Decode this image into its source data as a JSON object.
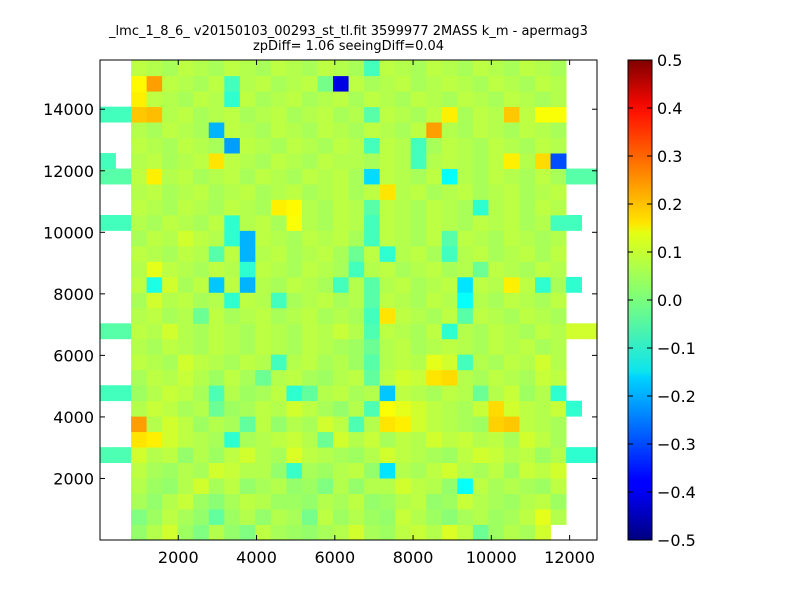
{
  "chart_data": {
    "type": "heatmap",
    "title_line1": "_lmc_1_8_6_ v20150103_00293_st_tl.fit 3599977 2MASS k_m - apermag3",
    "title_line2": "zpDiff= 1.06 seeingDiff=0.04",
    "xlabel": "",
    "ylabel": "",
    "xlim": [
      0,
      12700
    ],
    "ylim": [
      0,
      15600
    ],
    "x_ticks": [
      "2000",
      "4000",
      "6000",
      "8000",
      "10000",
      "12000"
    ],
    "y_ticks": [
      "2000",
      "4000",
      "6000",
      "8000",
      "10000",
      "12000",
      "14000"
    ],
    "colorbar": {
      "colormap": "jet",
      "vmin": -0.5,
      "vmax": 0.5,
      "ticks": [
        "−0.5",
        "−0.4",
        "−0.3",
        "−0.2",
        "−0.1",
        "0.0",
        "0.1",
        "0.2",
        "0.3",
        "0.4",
        "0.5"
      ]
    },
    "grid": false,
    "grid_size": {
      "cols": 32,
      "rows": 31
    },
    "x_start": 0,
    "x_step": 397,
    "y_start": 0,
    "y_step": 503,
    "values": [
      [
        null,
        null,
        0.02,
        0.05,
        0.08,
        0.03,
        0.0,
        0.05,
        0.02,
        0.0,
        0.06,
        0.04,
        0.03,
        0.02,
        0.04,
        0.05,
        0.08,
        0.04,
        0.03,
        0.06,
        0.07,
        0.05,
        0.09,
        0.06,
        -0.02,
        0.03,
        0.05,
        0.04,
        0.08,
        null,
        null,
        null
      ],
      [
        null,
        null,
        0.0,
        0.03,
        0.06,
        0.04,
        0.02,
        -0.03,
        0.03,
        0.05,
        0.02,
        0.05,
        0.04,
        -0.01,
        0.06,
        0.03,
        0.05,
        0.03,
        0.02,
        0.07,
        0.05,
        0.03,
        0.01,
        0.04,
        0.05,
        0.03,
        0.04,
        0.06,
        0.1,
        0.05,
        null,
        null
      ],
      [
        null,
        null,
        0.04,
        0.02,
        0.05,
        0.07,
        0.03,
        0.01,
        0.04,
        0.06,
        0.05,
        0.03,
        0.03,
        0.02,
        0.05,
        0.04,
        0.06,
        0.02,
        0.03,
        0.05,
        0.06,
        0.02,
        0.03,
        0.07,
        0.05,
        0.04,
        0.03,
        0.05,
        0.06,
        0.03,
        null,
        null
      ],
      [
        null,
        null,
        0.05,
        0.03,
        0.02,
        0.05,
        0.08,
        0.04,
        0.06,
        0.02,
        0.04,
        0.05,
        0.02,
        0.03,
        0.0,
        0.05,
        0.02,
        0.05,
        0.05,
        0.08,
        0.06,
        0.05,
        0.02,
        -0.12,
        0.06,
        0.04,
        0.05,
        0.04,
        0.03,
        0.06,
        null,
        null
      ],
      [
        null,
        null,
        0.06,
        0.04,
        0.03,
        0.05,
        0.04,
        0.08,
        0.07,
        0.05,
        0.05,
        0.02,
        -0.07,
        0.04,
        0.03,
        0.05,
        0.06,
        0.02,
        -0.15,
        0.05,
        0.04,
        0.06,
        0.08,
        0.05,
        0.04,
        0.06,
        0.03,
        0.07,
        0.06,
        0.08,
        null,
        null
      ],
      [
        -0.05,
        -0.05,
        0.08,
        0.05,
        0.06,
        0.02,
        0.05,
        0.03,
        0.06,
        0.08,
        0.05,
        0.04,
        0.09,
        0.06,
        0.05,
        0.04,
        0.03,
        0.05,
        0.08,
        0.06,
        0.05,
        0.04,
        0.03,
        0.06,
        0.08,
        0.07,
        0.05,
        0.06,
        0.03,
        0.05,
        -0.08,
        -0.08
      ],
      [
        null,
        null,
        0.15,
        0.14,
        0.08,
        0.06,
        0.05,
        0.04,
        -0.08,
        0.04,
        0.05,
        0.06,
        0.07,
        0.05,
        -0.02,
        0.08,
        0.05,
        0.07,
        0.04,
        0.06,
        0.05,
        0.08,
        0.06,
        0.07,
        0.05,
        0.06,
        0.04,
        0.08,
        0.06,
        0.04,
        null,
        null
      ],
      [
        null,
        null,
        0.22,
        0.05,
        0.08,
        0.06,
        0.03,
        0.05,
        0.04,
        -0.03,
        0.06,
        0.02,
        0.05,
        0.04,
        0.08,
        0.06,
        -0.05,
        0.05,
        0.15,
        0.14,
        0.08,
        0.06,
        0.05,
        0.04,
        0.03,
        0.17,
        0.18,
        0.06,
        0.05,
        0.04,
        null,
        null
      ],
      [
        null,
        null,
        0.05,
        0.07,
        0.06,
        0.04,
        0.05,
        -0.02,
        0.03,
        0.04,
        0.06,
        0.05,
        0.08,
        0.06,
        0.04,
        0.02,
        0.05,
        -0.05,
        0.12,
        0.1,
        0.08,
        0.06,
        0.05,
        0.04,
        0.07,
        0.16,
        0.08,
        0.06,
        0.05,
        0.07,
        -0.08,
        null
      ],
      [
        -0.06,
        -0.06,
        0.03,
        0.05,
        0.07,
        0.06,
        0.04,
        -0.05,
        0.05,
        0.03,
        0.04,
        0.06,
        -0.08,
        -0.03,
        0.05,
        0.06,
        0.04,
        0.05,
        -0.18,
        0.06,
        0.05,
        0.04,
        0.06,
        0.05,
        -0.02,
        0.05,
        0.07,
        0.03,
        0.05,
        -0.08,
        null,
        null
      ],
      [
        null,
        null,
        0.04,
        0.06,
        0.05,
        0.07,
        0.05,
        0.03,
        0.06,
        0.04,
        -0.02,
        0.05,
        0.06,
        0.04,
        0.03,
        0.05,
        0.06,
        -0.03,
        0.06,
        0.08,
        0.07,
        0.15,
        0.16,
        0.05,
        0.04,
        0.06,
        0.05,
        0.04,
        0.07,
        0.06,
        null,
        null
      ],
      [
        null,
        null,
        0.06,
        0.05,
        0.04,
        0.08,
        0.06,
        0.05,
        0.04,
        0.06,
        0.05,
        -0.06,
        0.05,
        0.06,
        0.04,
        0.05,
        0.03,
        -0.04,
        0.05,
        0.06,
        0.05,
        0.1,
        0.08,
        -0.06,
        0.05,
        0.04,
        0.06,
        0.05,
        0.08,
        0.05,
        null,
        null
      ],
      [
        null,
        null,
        0.05,
        0.04,
        0.06,
        0.05,
        0.04,
        0.06,
        0.05,
        0.04,
        0.06,
        0.05,
        0.04,
        0.06,
        0.05,
        0.04,
        0.03,
        -0.02,
        0.05,
        0.06,
        0.04,
        0.05,
        0.06,
        0.05,
        0.04,
        0.06,
        0.05,
        0.06,
        0.04,
        0.05,
        null,
        null
      ],
      [
        -0.04,
        -0.04,
        0.06,
        0.05,
        0.08,
        0.05,
        0.04,
        0.06,
        0.05,
        0.04,
        0.06,
        0.05,
        0.04,
        0.06,
        0.05,
        0.07,
        0.05,
        -0.05,
        0.06,
        0.05,
        0.04,
        0.06,
        -0.08,
        0.05,
        0.04,
        0.06,
        0.05,
        0.04,
        0.06,
        0.05,
        0.08,
        0.08
      ],
      [
        null,
        null,
        0.05,
        0.06,
        0.04,
        0.05,
        -0.02,
        0.06,
        0.04,
        0.05,
        0.06,
        0.04,
        0.05,
        0.06,
        0.04,
        0.05,
        0.04,
        -0.06,
        0.15,
        0.06,
        0.05,
        0.04,
        0.06,
        -0.04,
        0.06,
        0.05,
        0.04,
        0.06,
        0.05,
        0.04,
        null,
        null
      ],
      [
        null,
        null,
        0.04,
        0.08,
        0.05,
        0.06,
        0.04,
        0.05,
        -0.08,
        0.06,
        0.05,
        -0.06,
        0.04,
        0.05,
        0.06,
        0.04,
        0.05,
        -0.04,
        0.06,
        0.05,
        0.04,
        0.06,
        0.05,
        -0.12,
        0.05,
        0.04,
        0.06,
        0.05,
        0.04,
        0.06,
        null,
        null
      ],
      [
        null,
        null,
        0.06,
        -0.1,
        0.08,
        0.04,
        0.06,
        -0.18,
        0.06,
        -0.2,
        0.05,
        0.04,
        0.06,
        0.05,
        0.04,
        -0.06,
        0.05,
        -0.04,
        0.05,
        0.06,
        0.04,
        0.05,
        0.06,
        -0.15,
        0.06,
        0.05,
        0.14,
        0.06,
        -0.08,
        0.04,
        -0.08,
        null
      ],
      [
        null,
        null,
        0.05,
        0.1,
        0.06,
        0.05,
        0.04,
        0.06,
        0.05,
        -0.08,
        0.06,
        0.05,
        0.04,
        0.06,
        0.05,
        0.04,
        -0.06,
        0.05,
        0.06,
        0.04,
        0.05,
        0.06,
        0.04,
        0.05,
        -0.02,
        0.06,
        0.05,
        0.04,
        0.06,
        0.05,
        null,
        null
      ],
      [
        null,
        null,
        0.06,
        0.05,
        0.04,
        0.06,
        0.05,
        -0.04,
        0.06,
        -0.2,
        0.05,
        0.06,
        0.04,
        0.05,
        0.06,
        0.04,
        -0.02,
        0.06,
        -0.08,
        0.05,
        0.06,
        0.04,
        -0.06,
        0.05,
        0.06,
        0.04,
        0.05,
        0.06,
        0.04,
        0.06,
        null,
        null
      ],
      [
        null,
        null,
        0.04,
        0.06,
        0.05,
        0.08,
        0.06,
        0.05,
        -0.08,
        -0.2,
        0.06,
        0.05,
        0.04,
        0.06,
        0.05,
        0.06,
        0.04,
        -0.06,
        0.06,
        0.05,
        0.04,
        0.06,
        -0.04,
        0.06,
        0.05,
        0.04,
        0.06,
        0.05,
        0.04,
        0.05,
        null,
        null
      ],
      [
        -0.06,
        -0.06,
        0.05,
        0.04,
        0.06,
        0.05,
        0.04,
        0.06,
        -0.08,
        0.05,
        0.06,
        0.04,
        0.12,
        0.05,
        0.04,
        0.06,
        0.05,
        -0.06,
        0.06,
        0.05,
        0.04,
        0.06,
        0.05,
        0.04,
        0.06,
        0.05,
        0.06,
        0.04,
        0.05,
        -0.06,
        -0.06,
        null
      ],
      [
        null,
        null,
        0.06,
        0.05,
        0.04,
        0.06,
        0.05,
        0.04,
        0.06,
        0.05,
        0.04,
        0.14,
        0.13,
        0.05,
        0.04,
        0.06,
        0.05,
        -0.04,
        0.06,
        0.05,
        0.04,
        0.06,
        0.05,
        0.04,
        -0.08,
        0.05,
        0.06,
        0.04,
        0.06,
        0.05,
        null,
        null
      ],
      [
        null,
        null,
        0.05,
        0.06,
        0.04,
        0.05,
        0.06,
        0.04,
        0.05,
        0.06,
        0.04,
        0.05,
        0.06,
        0.04,
        0.05,
        0.06,
        0.04,
        0.06,
        0.15,
        0.05,
        0.06,
        0.04,
        0.05,
        0.06,
        0.04,
        0.05,
        0.06,
        0.04,
        0.05,
        0.06,
        null,
        null
      ],
      [
        -0.04,
        -0.04,
        0.06,
        0.14,
        0.05,
        0.06,
        0.04,
        0.05,
        0.06,
        0.04,
        0.06,
        0.05,
        0.04,
        0.06,
        0.05,
        0.06,
        0.04,
        -0.16,
        0.06,
        0.05,
        0.04,
        0.06,
        -0.12,
        0.05,
        0.04,
        0.06,
        0.05,
        0.04,
        0.06,
        0.04,
        -0.04,
        -0.04
      ],
      [
        -0.06,
        null,
        0.05,
        0.06,
        0.04,
        0.05,
        0.06,
        0.15,
        0.06,
        0.05,
        0.04,
        0.06,
        0.05,
        0.04,
        0.06,
        0.05,
        0.05,
        0.04,
        0.06,
        0.05,
        -0.06,
        0.05,
        0.06,
        0.05,
        0.04,
        0.06,
        0.14,
        0.05,
        0.16,
        -0.3,
        null,
        null
      ],
      [
        null,
        null,
        0.06,
        0.05,
        0.04,
        0.06,
        0.05,
        0.04,
        -0.22,
        0.06,
        0.05,
        0.04,
        0.06,
        0.05,
        0.04,
        0.06,
        0.05,
        -0.06,
        0.06,
        0.05,
        -0.06,
        0.04,
        0.06,
        0.05,
        0.04,
        0.06,
        0.05,
        0.04,
        0.06,
        0.05,
        null,
        null
      ],
      [
        null,
        null,
        0.05,
        0.04,
        0.06,
        0.05,
        0.04,
        -0.2,
        0.06,
        0.05,
        0.04,
        0.06,
        0.05,
        0.04,
        0.06,
        0.05,
        0.04,
        0.06,
        0.05,
        0.04,
        0.06,
        0.22,
        0.05,
        0.04,
        0.06,
        0.05,
        0.04,
        0.06,
        0.05,
        0.04,
        null,
        null
      ],
      [
        -0.06,
        -0.06,
        0.18,
        0.19,
        0.05,
        0.06,
        0.04,
        0.05,
        0.06,
        0.04,
        0.05,
        0.06,
        0.04,
        0.05,
        0.06,
        0.04,
        0.05,
        -0.04,
        0.06,
        0.05,
        0.04,
        0.06,
        0.14,
        0.04,
        0.06,
        0.05,
        0.18,
        0.06,
        0.12,
        0.12,
        null,
        null
      ],
      [
        null,
        null,
        0.14,
        0.06,
        0.05,
        0.04,
        0.06,
        0.05,
        -0.08,
        0.06,
        0.04,
        0.05,
        0.06,
        0.04,
        0.05,
        0.06,
        0.04,
        0.06,
        0.05,
        0.04,
        0.06,
        0.05,
        0.04,
        0.06,
        0.05,
        0.04,
        0.06,
        0.05,
        0.04,
        0.05,
        null,
        null
      ],
      [
        null,
        null,
        0.13,
        0.22,
        0.06,
        0.05,
        0.04,
        0.06,
        -0.06,
        0.05,
        0.06,
        0.04,
        0.05,
        0.06,
        -0.01,
        -0.4,
        0.06,
        0.04,
        0.05,
        0.06,
        0.04,
        0.05,
        0.06,
        0.05,
        0.04,
        0.06,
        0.05,
        0.04,
        0.06,
        0.05,
        null,
        null
      ],
      [
        null,
        null,
        0.06,
        0.05,
        0.04,
        0.06,
        0.05,
        0.04,
        0.06,
        0.05,
        0.04,
        0.06,
        0.05,
        0.04,
        0.06,
        0.05,
        0.04,
        -0.06,
        0.06,
        0.05,
        0.04,
        0.06,
        0.05,
        0.04,
        0.06,
        0.05,
        0.04,
        0.06,
        0.05,
        0.04,
        null,
        null
      ]
    ]
  }
}
